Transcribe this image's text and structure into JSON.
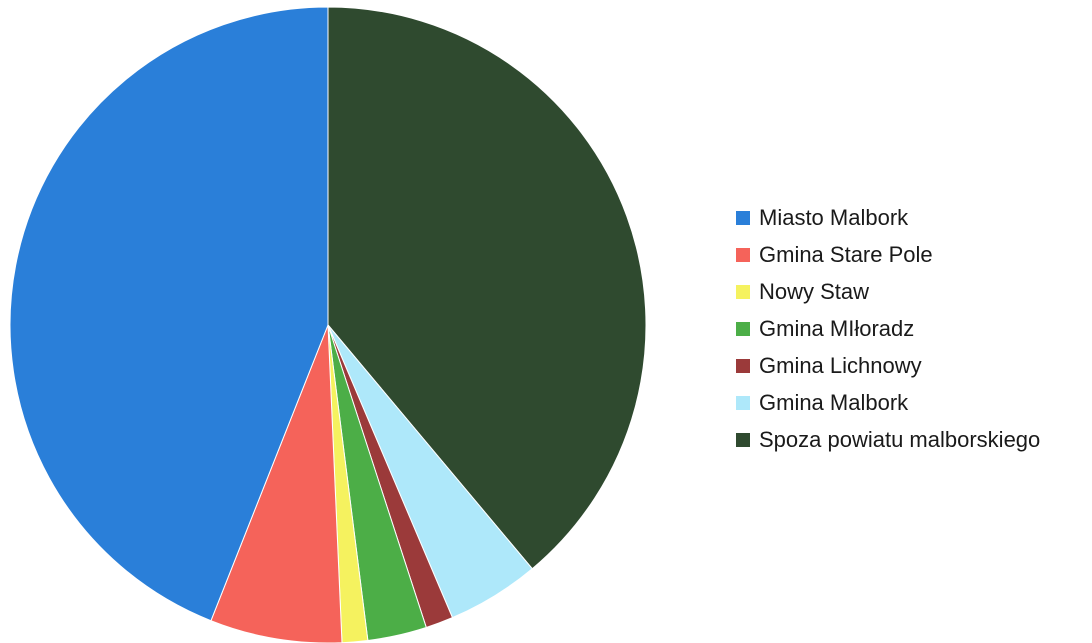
{
  "chart_data": {
    "type": "pie",
    "start_angle_deg": 0,
    "direction": "clockwise",
    "legend_position": "right",
    "slices": [
      {
        "label": "Spoza powiatu malborskiego",
        "value": 38.9,
        "color": "#2f4a2f"
      },
      {
        "label": "Gmina Malbork",
        "value": 4.7,
        "color": "#aee8fa"
      },
      {
        "label": "Gmina Lichnowy",
        "value": 1.4,
        "color": "#9b3a3a"
      },
      {
        "label": "Gmina MIłoradz",
        "value": 3.0,
        "color": "#4cae47"
      },
      {
        "label": "Nowy Staw",
        "value": 1.3,
        "color": "#f5f25f"
      },
      {
        "label": "Gmina Stare Pole",
        "value": 6.7,
        "color": "#f5635a"
      },
      {
        "label": "Miasto Malbork",
        "value": 44.0,
        "color": "#2a7fd9"
      }
    ],
    "legend": [
      {
        "label": "Miasto Malbork",
        "color": "#2a7fd9"
      },
      {
        "label": "Gmina Stare Pole",
        "color": "#f5635a"
      },
      {
        "label": "Nowy Staw",
        "color": "#f5f25f"
      },
      {
        "label": "Gmina MIłoradz",
        "color": "#4cae47"
      },
      {
        "label": "Gmina Lichnowy",
        "color": "#9b3a3a"
      },
      {
        "label": "Gmina Malbork",
        "color": "#aee8fa"
      },
      {
        "label": "Spoza powiatu malborskiego",
        "color": "#2f4a2f"
      }
    ]
  }
}
